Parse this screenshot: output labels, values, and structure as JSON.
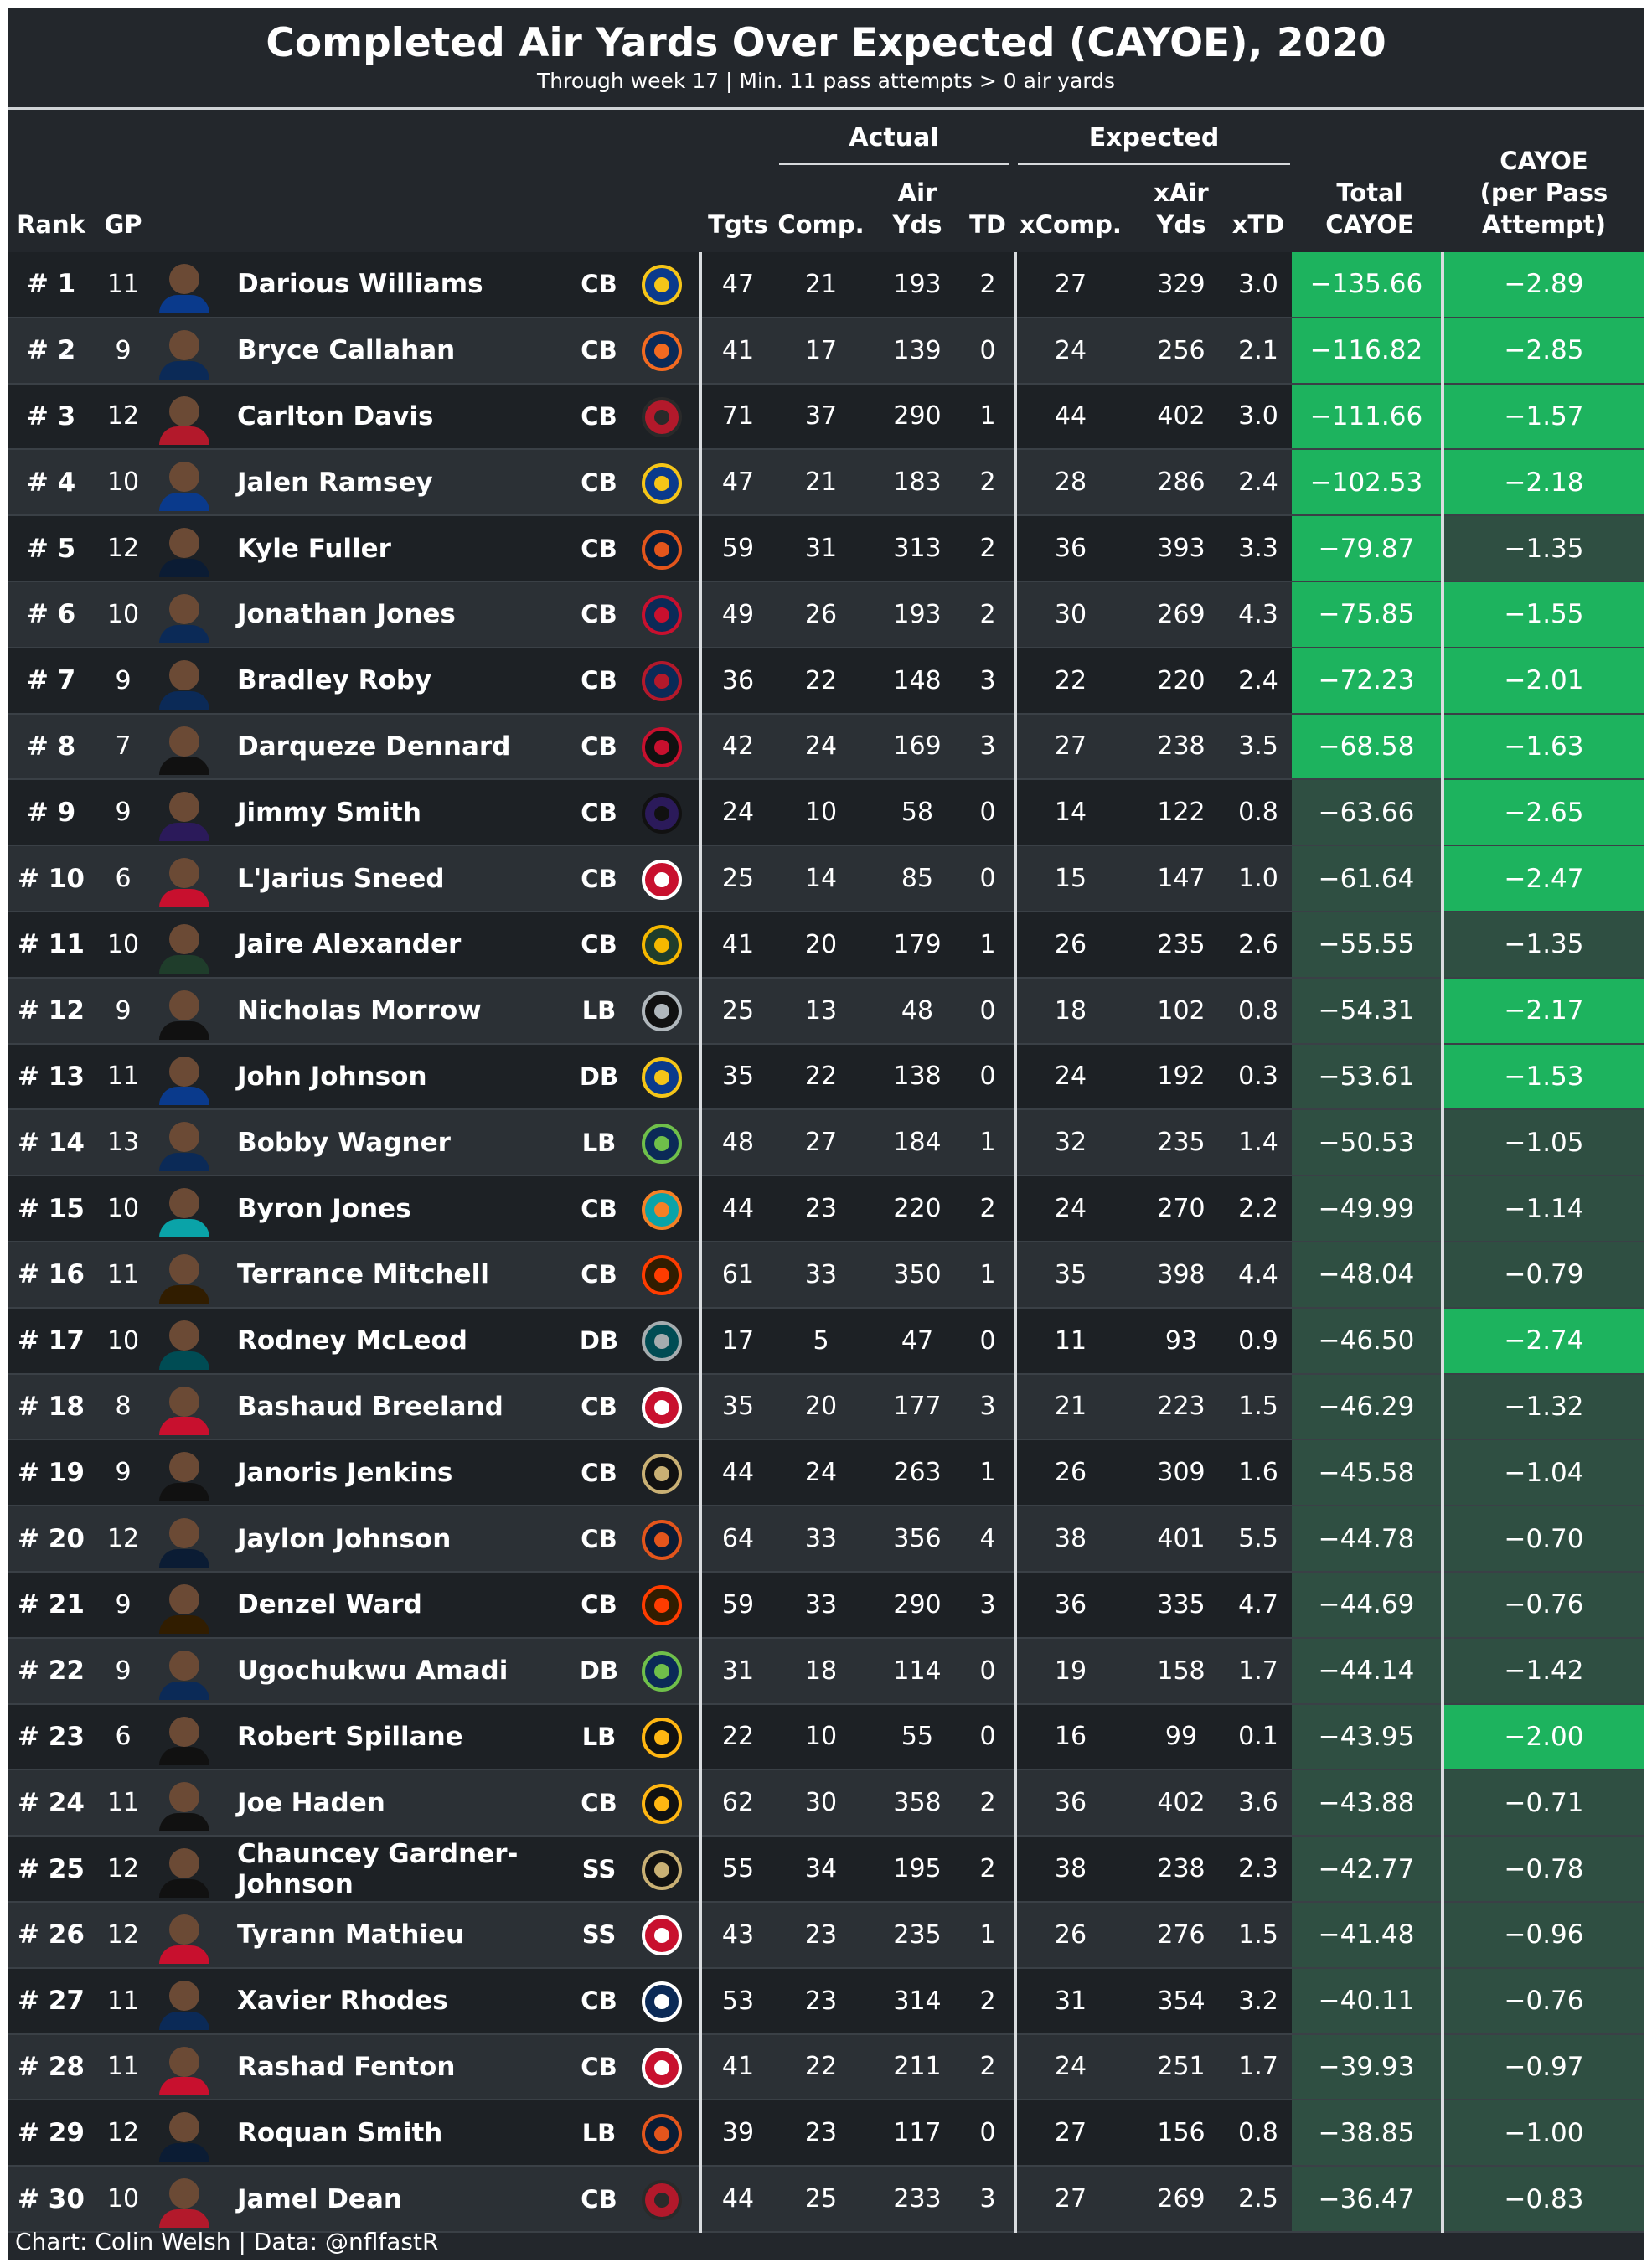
{
  "chart": {
    "title": "Completed Air Yards Over Expected (CAYOE), 2020",
    "subtitle": "Through week 17 | Min. 11 pass attempts > 0 air yards",
    "footer": "Chart: Colin Welsh | Data: @nflfastR"
  },
  "colors": {
    "background": "#23272c",
    "row_dark": "#1d2125",
    "row_light": "#2b3035",
    "highlight_green": "#1db35e",
    "muted_green": "#2f4f42"
  },
  "chart_data": {
    "type": "table",
    "groups": {
      "actual": "Actual",
      "expected": "Expected"
    },
    "headers": {
      "rank": "Rank",
      "gp": "GP",
      "tgts": "Tgts",
      "comp": "Comp.",
      "air_yds": "Air\nYds",
      "td": "TD",
      "xcomp": "xComp.",
      "xair_yds": "xAir\nYds",
      "xtd": "xTD",
      "total": "Total\nCAYOE",
      "per_pass": "CAYOE\n(per Pass\nAttempt)"
    },
    "rows": [
      {
        "rank": "# 1",
        "gp": "11",
        "name": "Darious Williams",
        "pos": "CB",
        "team": "LA",
        "team_logo": "rams-horn-icon",
        "tgts": "47",
        "comp": "21",
        "air": "193",
        "td": "2",
        "xcomp": "27",
        "xair": "329",
        "xtd": "3.0",
        "total": "−135.66",
        "pp": "−2.89",
        "hl_total": true,
        "hl_pp": true
      },
      {
        "rank": "# 2",
        "gp": "9",
        "name": "Bryce Callahan",
        "pos": "CB",
        "team": "DEN",
        "team_logo": "bronco-head-icon",
        "tgts": "41",
        "comp": "17",
        "air": "139",
        "td": "0",
        "xcomp": "24",
        "xair": "256",
        "xtd": "2.1",
        "total": "−116.82",
        "pp": "−2.85",
        "hl_total": true,
        "hl_pp": true
      },
      {
        "rank": "# 3",
        "gp": "12",
        "name": "Carlton Davis",
        "pos": "CB",
        "team": "TB",
        "team_logo": "pirate-flag-icon",
        "tgts": "71",
        "comp": "37",
        "air": "290",
        "td": "1",
        "xcomp": "44",
        "xair": "402",
        "xtd": "3.0",
        "total": "−111.66",
        "pp": "−1.57",
        "hl_total": true,
        "hl_pp": true
      },
      {
        "rank": "# 4",
        "gp": "10",
        "name": "Jalen Ramsey",
        "pos": "CB",
        "team": "LA",
        "team_logo": "rams-horn-icon",
        "tgts": "47",
        "comp": "21",
        "air": "183",
        "td": "2",
        "xcomp": "28",
        "xair": "286",
        "xtd": "2.4",
        "total": "−102.53",
        "pp": "−2.18",
        "hl_total": true,
        "hl_pp": true
      },
      {
        "rank": "# 5",
        "gp": "12",
        "name": "Kyle Fuller",
        "pos": "CB",
        "team": "CHI",
        "team_logo": "bears-c-icon",
        "tgts": "59",
        "comp": "31",
        "air": "313",
        "td": "2",
        "xcomp": "36",
        "xair": "393",
        "xtd": "3.3",
        "total": "−79.87",
        "pp": "−1.35",
        "hl_total": true,
        "hl_pp": false
      },
      {
        "rank": "# 6",
        "gp": "10",
        "name": "Jonathan Jones",
        "pos": "CB",
        "team": "NE",
        "team_logo": "patriot-head-icon",
        "tgts": "49",
        "comp": "26",
        "air": "193",
        "td": "2",
        "xcomp": "30",
        "xair": "269",
        "xtd": "4.3",
        "total": "−75.85",
        "pp": "−1.55",
        "hl_total": true,
        "hl_pp": true
      },
      {
        "rank": "# 7",
        "gp": "9",
        "name": "Bradley Roby",
        "pos": "CB",
        "team": "HOU",
        "team_logo": "bull-head-icon",
        "tgts": "36",
        "comp": "22",
        "air": "148",
        "td": "3",
        "xcomp": "22",
        "xair": "220",
        "xtd": "2.4",
        "total": "−72.23",
        "pp": "−2.01",
        "hl_total": true,
        "hl_pp": true
      },
      {
        "rank": "# 8",
        "gp": "7",
        "name": "Darqueze Dennard",
        "pos": "CB",
        "team": "ATL",
        "team_logo": "falcon-icon",
        "tgts": "42",
        "comp": "24",
        "air": "169",
        "td": "3",
        "xcomp": "27",
        "xair": "238",
        "xtd": "3.5",
        "total": "−68.58",
        "pp": "−1.63",
        "hl_total": true,
        "hl_pp": true
      },
      {
        "rank": "# 9",
        "gp": "9",
        "name": "Jimmy Smith",
        "pos": "CB",
        "team": "BAL",
        "team_logo": "raven-head-icon",
        "tgts": "24",
        "comp": "10",
        "air": "58",
        "td": "0",
        "xcomp": "14",
        "xair": "122",
        "xtd": "0.8",
        "total": "−63.66",
        "pp": "−2.65",
        "hl_total": false,
        "hl_pp": true
      },
      {
        "rank": "# 10",
        "gp": "6",
        "name": "L'Jarius Sneed",
        "pos": "CB",
        "team": "KC",
        "team_logo": "arrowhead-icon",
        "tgts": "25",
        "comp": "14",
        "air": "85",
        "td": "0",
        "xcomp": "15",
        "xair": "147",
        "xtd": "1.0",
        "total": "−61.64",
        "pp": "−2.47",
        "hl_total": false,
        "hl_pp": true
      },
      {
        "rank": "# 11",
        "gp": "10",
        "name": "Jaire Alexander",
        "pos": "CB",
        "team": "GB",
        "team_logo": "packers-g-icon",
        "tgts": "41",
        "comp": "20",
        "air": "179",
        "td": "1",
        "xcomp": "26",
        "xair": "235",
        "xtd": "2.6",
        "total": "−55.55",
        "pp": "−1.35",
        "hl_total": false,
        "hl_pp": false
      },
      {
        "rank": "# 12",
        "gp": "9",
        "name": "Nicholas Morrow",
        "pos": "LB",
        "team": "LV",
        "team_logo": "raiders-shield-icon",
        "tgts": "25",
        "comp": "13",
        "air": "48",
        "td": "0",
        "xcomp": "18",
        "xair": "102",
        "xtd": "0.8",
        "total": "−54.31",
        "pp": "−2.17",
        "hl_total": false,
        "hl_pp": true
      },
      {
        "rank": "# 13",
        "gp": "11",
        "name": "John Johnson",
        "pos": "DB",
        "team": "LA",
        "team_logo": "rams-horn-icon",
        "tgts": "35",
        "comp": "22",
        "air": "138",
        "td": "0",
        "xcomp": "24",
        "xair": "192",
        "xtd": "0.3",
        "total": "−53.61",
        "pp": "−1.53",
        "hl_total": false,
        "hl_pp": true
      },
      {
        "rank": "# 14",
        "gp": "13",
        "name": "Bobby Wagner",
        "pos": "LB",
        "team": "SEA",
        "team_logo": "seahawk-head-icon",
        "tgts": "48",
        "comp": "27",
        "air": "184",
        "td": "1",
        "xcomp": "32",
        "xair": "235",
        "xtd": "1.4",
        "total": "−50.53",
        "pp": "−1.05",
        "hl_total": false,
        "hl_pp": false
      },
      {
        "rank": "# 15",
        "gp": "10",
        "name": "Byron Jones",
        "pos": "CB",
        "team": "MIA",
        "team_logo": "dolphin-icon",
        "tgts": "44",
        "comp": "23",
        "air": "220",
        "td": "2",
        "xcomp": "24",
        "xair": "270",
        "xtd": "2.2",
        "total": "−49.99",
        "pp": "−1.14",
        "hl_total": false,
        "hl_pp": false
      },
      {
        "rank": "# 16",
        "gp": "11",
        "name": "Terrance Mitchell",
        "pos": "CB",
        "team": "CLE",
        "team_logo": "helmet-icon",
        "tgts": "61",
        "comp": "33",
        "air": "350",
        "td": "1",
        "xcomp": "35",
        "xair": "398",
        "xtd": "4.4",
        "total": "−48.04",
        "pp": "−0.79",
        "hl_total": false,
        "hl_pp": false
      },
      {
        "rank": "# 17",
        "gp": "10",
        "name": "Rodney McLeod",
        "pos": "DB",
        "team": "PHI",
        "team_logo": "eagle-head-icon",
        "tgts": "17",
        "comp": "5",
        "air": "47",
        "td": "0",
        "xcomp": "11",
        "xair": "93",
        "xtd": "0.9",
        "total": "−46.50",
        "pp": "−2.74",
        "hl_total": false,
        "hl_pp": true
      },
      {
        "rank": "# 18",
        "gp": "8",
        "name": "Bashaud Breeland",
        "pos": "CB",
        "team": "KC",
        "team_logo": "arrowhead-icon",
        "tgts": "35",
        "comp": "20",
        "air": "177",
        "td": "3",
        "xcomp": "21",
        "xair": "223",
        "xtd": "1.5",
        "total": "−46.29",
        "pp": "−1.32",
        "hl_total": false,
        "hl_pp": false
      },
      {
        "rank": "# 19",
        "gp": "9",
        "name": "Janoris Jenkins",
        "pos": "CB",
        "team": "NO",
        "team_logo": "fleur-de-lis-icon",
        "tgts": "44",
        "comp": "24",
        "air": "263",
        "td": "1",
        "xcomp": "26",
        "xair": "309",
        "xtd": "1.6",
        "total": "−45.58",
        "pp": "−1.04",
        "hl_total": false,
        "hl_pp": false
      },
      {
        "rank": "# 20",
        "gp": "12",
        "name": "Jaylon Johnson",
        "pos": "CB",
        "team": "CHI",
        "team_logo": "bears-c-icon",
        "tgts": "64",
        "comp": "33",
        "air": "356",
        "td": "4",
        "xcomp": "38",
        "xair": "401",
        "xtd": "5.5",
        "total": "−44.78",
        "pp": "−0.70",
        "hl_total": false,
        "hl_pp": false
      },
      {
        "rank": "# 21",
        "gp": "9",
        "name": "Denzel Ward",
        "pos": "CB",
        "team": "CLE",
        "team_logo": "helmet-icon",
        "tgts": "59",
        "comp": "33",
        "air": "290",
        "td": "3",
        "xcomp": "36",
        "xair": "335",
        "xtd": "4.7",
        "total": "−44.69",
        "pp": "−0.76",
        "hl_total": false,
        "hl_pp": false
      },
      {
        "rank": "# 22",
        "gp": "9",
        "name": "Ugochukwu Amadi",
        "pos": "DB",
        "team": "SEA",
        "team_logo": "seahawk-head-icon",
        "tgts": "31",
        "comp": "18",
        "air": "114",
        "td": "0",
        "xcomp": "19",
        "xair": "158",
        "xtd": "1.7",
        "total": "−44.14",
        "pp": "−1.42",
        "hl_total": false,
        "hl_pp": false
      },
      {
        "rank": "# 23",
        "gp": "6",
        "name": "Robert Spillane",
        "pos": "LB",
        "team": "PIT",
        "team_logo": "steelers-logo-icon",
        "tgts": "22",
        "comp": "10",
        "air": "55",
        "td": "0",
        "xcomp": "16",
        "xair": "99",
        "xtd": "0.1",
        "total": "−43.95",
        "pp": "−2.00",
        "hl_total": false,
        "hl_pp": true
      },
      {
        "rank": "# 24",
        "gp": "11",
        "name": "Joe Haden",
        "pos": "CB",
        "team": "PIT",
        "team_logo": "steelers-logo-icon",
        "tgts": "62",
        "comp": "30",
        "air": "358",
        "td": "2",
        "xcomp": "36",
        "xair": "402",
        "xtd": "3.6",
        "total": "−43.88",
        "pp": "−0.71",
        "hl_total": false,
        "hl_pp": false
      },
      {
        "rank": "# 25",
        "gp": "12",
        "name": "Chauncey Gardner-Johnson",
        "pos": "SS",
        "team": "NO",
        "team_logo": "fleur-de-lis-icon",
        "tgts": "55",
        "comp": "34",
        "air": "195",
        "td": "2",
        "xcomp": "38",
        "xair": "238",
        "xtd": "2.3",
        "total": "−42.77",
        "pp": "−0.78",
        "hl_total": false,
        "hl_pp": false
      },
      {
        "rank": "# 26",
        "gp": "12",
        "name": "Tyrann Mathieu",
        "pos": "SS",
        "team": "KC",
        "team_logo": "arrowhead-icon",
        "tgts": "43",
        "comp": "23",
        "air": "235",
        "td": "1",
        "xcomp": "26",
        "xair": "276",
        "xtd": "1.5",
        "total": "−41.48",
        "pp": "−0.96",
        "hl_total": false,
        "hl_pp": false
      },
      {
        "rank": "# 27",
        "gp": "11",
        "name": "Xavier Rhodes",
        "pos": "CB",
        "team": "IND",
        "team_logo": "horseshoe-icon",
        "tgts": "53",
        "comp": "23",
        "air": "314",
        "td": "2",
        "xcomp": "31",
        "xair": "354",
        "xtd": "3.2",
        "total": "−40.11",
        "pp": "−0.76",
        "hl_total": false,
        "hl_pp": false
      },
      {
        "rank": "# 28",
        "gp": "11",
        "name": "Rashad Fenton",
        "pos": "CB",
        "team": "KC",
        "team_logo": "arrowhead-icon",
        "tgts": "41",
        "comp": "22",
        "air": "211",
        "td": "2",
        "xcomp": "24",
        "xair": "251",
        "xtd": "1.7",
        "total": "−39.93",
        "pp": "−0.97",
        "hl_total": false,
        "hl_pp": false
      },
      {
        "rank": "# 29",
        "gp": "12",
        "name": "Roquan Smith",
        "pos": "LB",
        "team": "CHI",
        "team_logo": "bears-c-icon",
        "tgts": "39",
        "comp": "23",
        "air": "117",
        "td": "0",
        "xcomp": "27",
        "xair": "156",
        "xtd": "0.8",
        "total": "−38.85",
        "pp": "−1.00",
        "hl_total": false,
        "hl_pp": false
      },
      {
        "rank": "# 30",
        "gp": "10",
        "name": "Jamel Dean",
        "pos": "CB",
        "team": "TB",
        "team_logo": "pirate-flag-icon",
        "tgts": "44",
        "comp": "25",
        "air": "233",
        "td": "3",
        "xcomp": "27",
        "xair": "269",
        "xtd": "2.5",
        "total": "−36.47",
        "pp": "−0.83",
        "hl_total": false,
        "hl_pp": false
      }
    ]
  }
}
